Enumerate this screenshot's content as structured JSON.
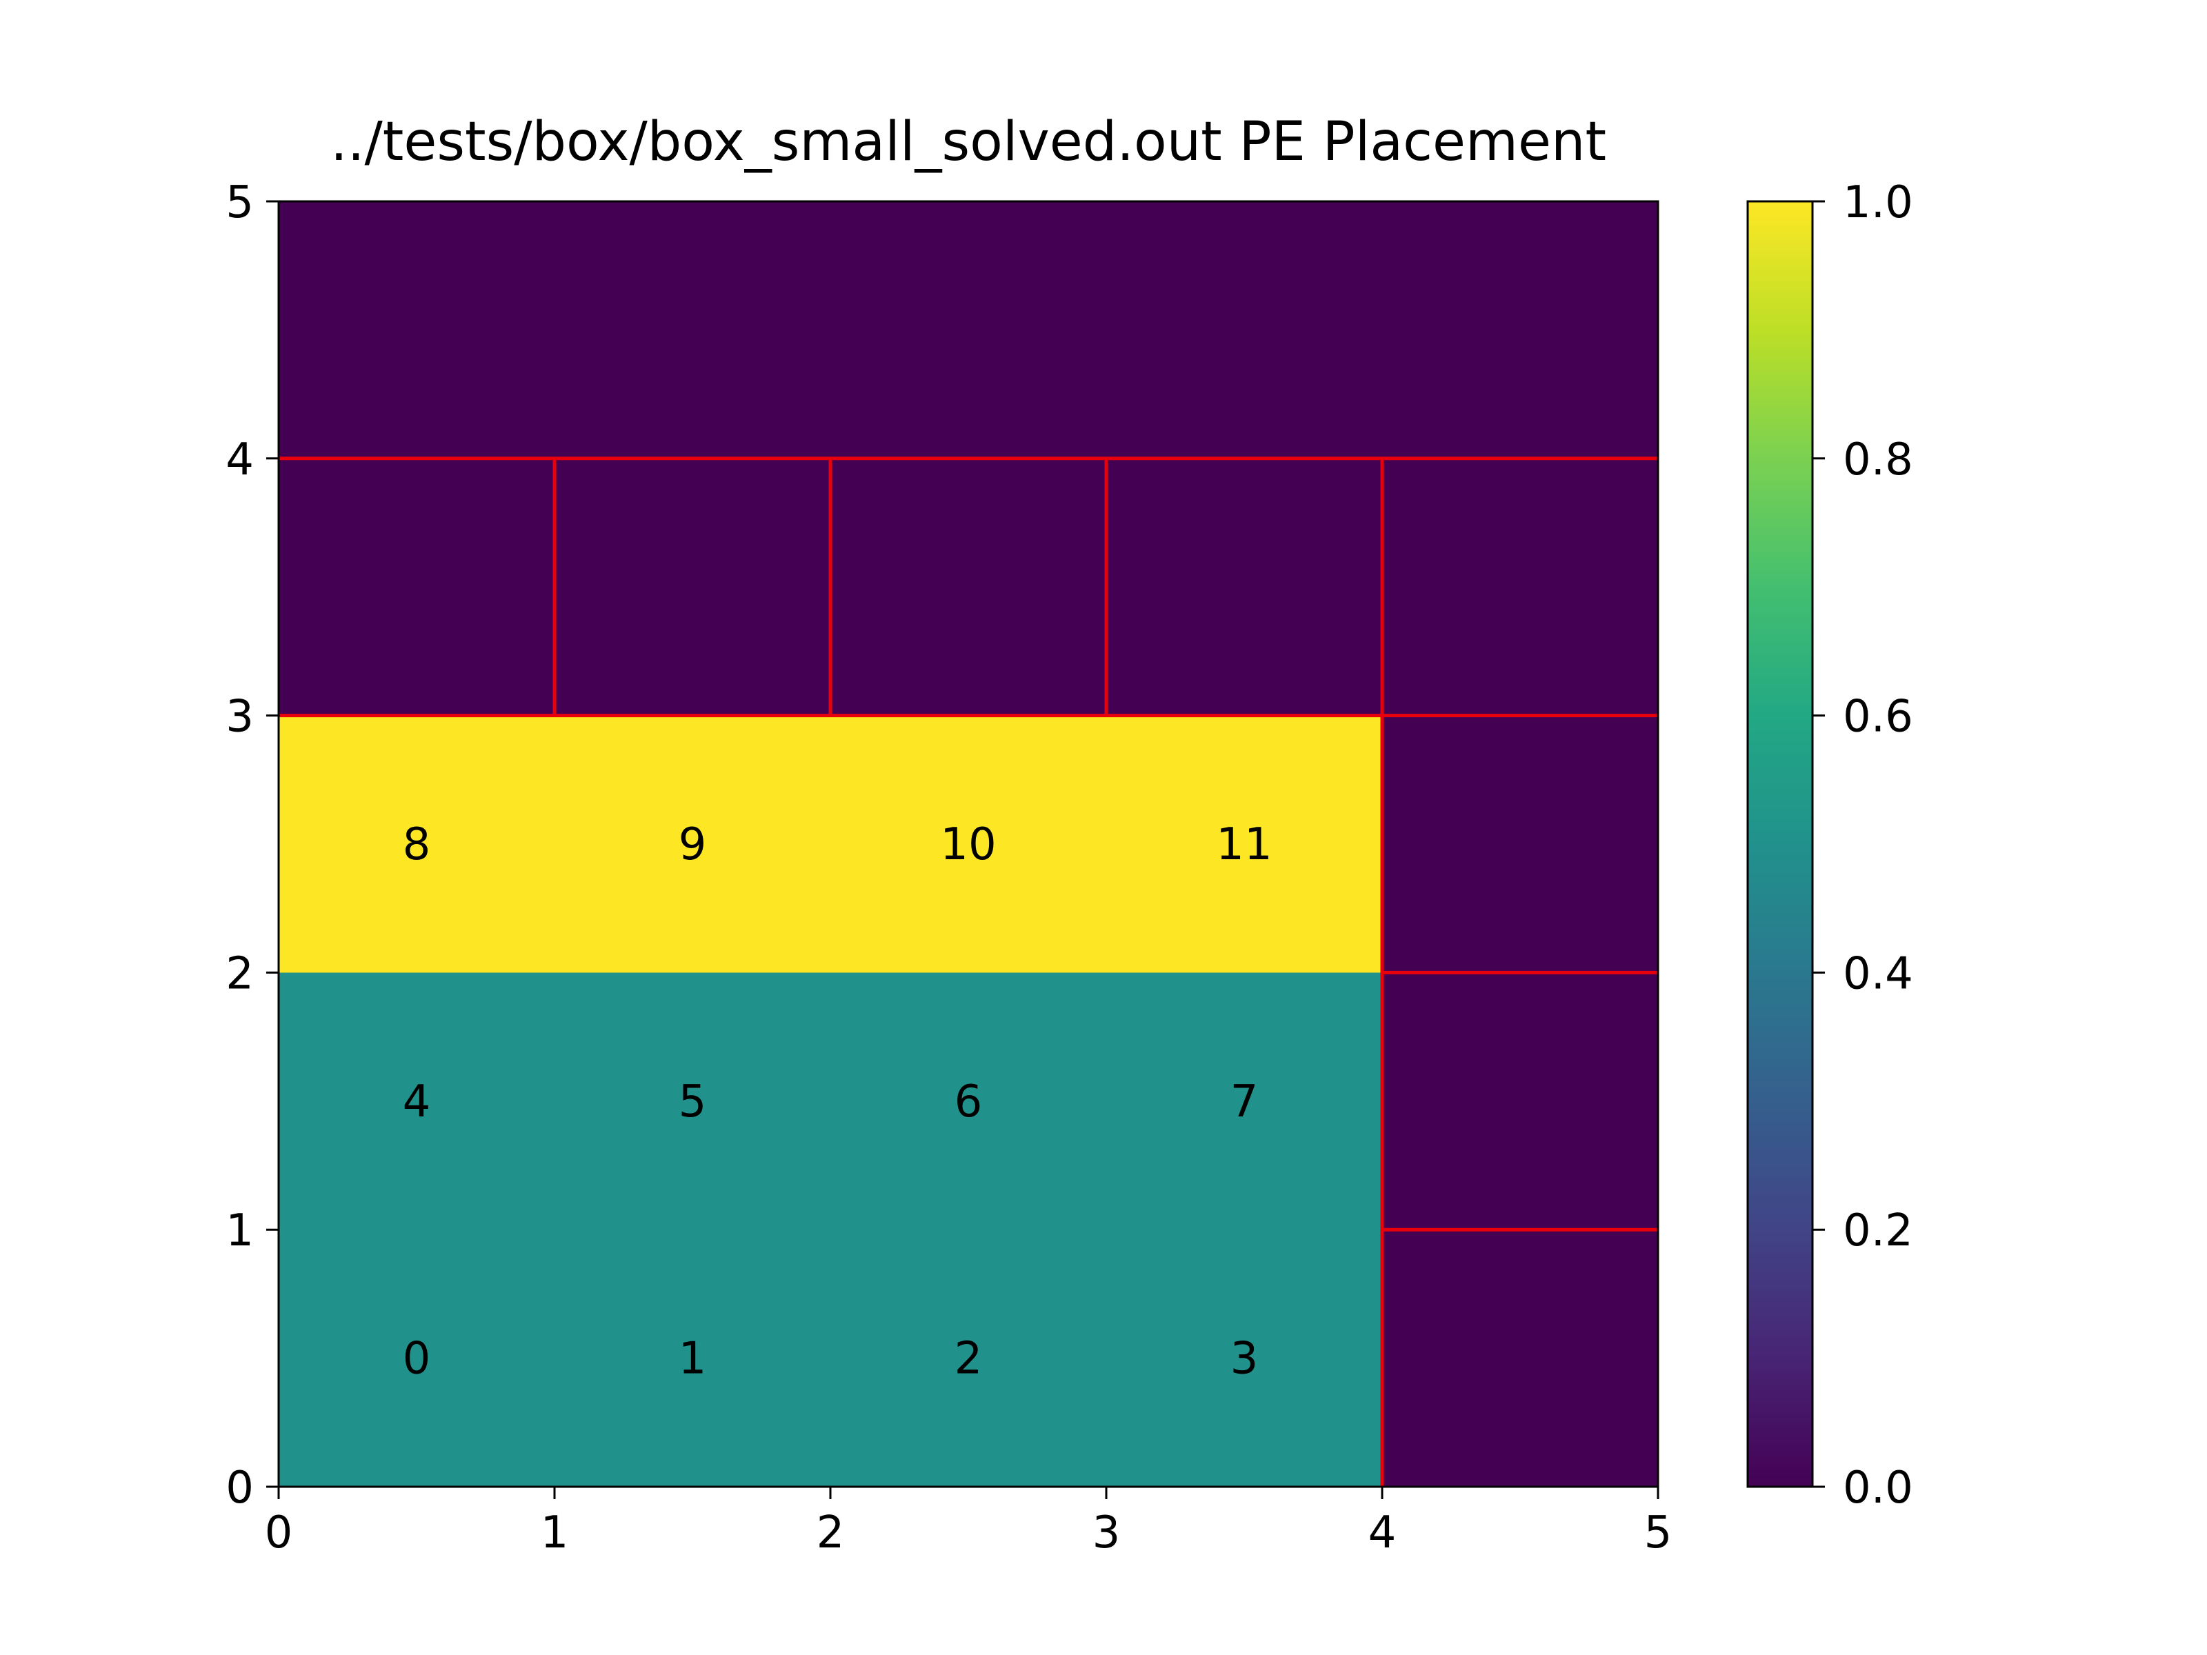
{
  "chart_data": {
    "type": "heatmap",
    "title": "../tests/box/box_small_solved.out PE Placement",
    "xlabel": "",
    "ylabel": "",
    "xlim": [
      0,
      5
    ],
    "ylim": [
      0,
      5
    ],
    "x_ticks": [
      "0",
      "1",
      "2",
      "3",
      "4",
      "5"
    ],
    "y_ticks": [
      "0",
      "1",
      "2",
      "3",
      "4",
      "5"
    ],
    "grid": false,
    "colormap": "viridis",
    "colorbar": {
      "range": [
        0,
        1
      ],
      "ticks": [
        "0.0",
        "0.2",
        "0.4",
        "0.6",
        "0.8",
        "1.0"
      ]
    },
    "rows_bottom_to_top": [
      [
        0.5,
        0.5,
        0.5,
        0.5,
        0.0
      ],
      [
        0.5,
        0.5,
        0.5,
        0.5,
        0.0
      ],
      [
        1.0,
        1.0,
        1.0,
        1.0,
        0.0
      ],
      [
        0.0,
        0.0,
        0.0,
        0.0,
        0.0
      ],
      [
        0.0,
        0.0,
        0.0,
        0.0,
        0.0
      ]
    ],
    "cell_labels": [
      {
        "x": 0.5,
        "y": 0.5,
        "text": "0"
      },
      {
        "x": 1.5,
        "y": 0.5,
        "text": "1"
      },
      {
        "x": 2.5,
        "y": 0.5,
        "text": "2"
      },
      {
        "x": 3.5,
        "y": 0.5,
        "text": "3"
      },
      {
        "x": 0.5,
        "y": 1.5,
        "text": "4"
      },
      {
        "x": 1.5,
        "y": 1.5,
        "text": "5"
      },
      {
        "x": 2.5,
        "y": 1.5,
        "text": "6"
      },
      {
        "x": 3.5,
        "y": 1.5,
        "text": "7"
      },
      {
        "x": 0.5,
        "y": 2.5,
        "text": "8"
      },
      {
        "x": 1.5,
        "y": 2.5,
        "text": "9"
      },
      {
        "x": 2.5,
        "y": 2.5,
        "text": "10"
      },
      {
        "x": 3.5,
        "y": 2.5,
        "text": "11"
      }
    ],
    "boundary_color": "#e8000b",
    "boundaries": [
      [
        [
          0,
          4
        ],
        [
          5,
          4
        ]
      ],
      [
        [
          0,
          3
        ],
        [
          5,
          3
        ]
      ],
      [
        [
          1,
          3
        ],
        [
          1,
          4
        ]
      ],
      [
        [
          2,
          3
        ],
        [
          2,
          4
        ]
      ],
      [
        [
          3,
          3
        ],
        [
          3,
          4
        ]
      ],
      [
        [
          4,
          0
        ],
        [
          4,
          4
        ]
      ],
      [
        [
          4,
          2
        ],
        [
          5,
          2
        ]
      ],
      [
        [
          4,
          1
        ],
        [
          5,
          1
        ]
      ]
    ]
  }
}
